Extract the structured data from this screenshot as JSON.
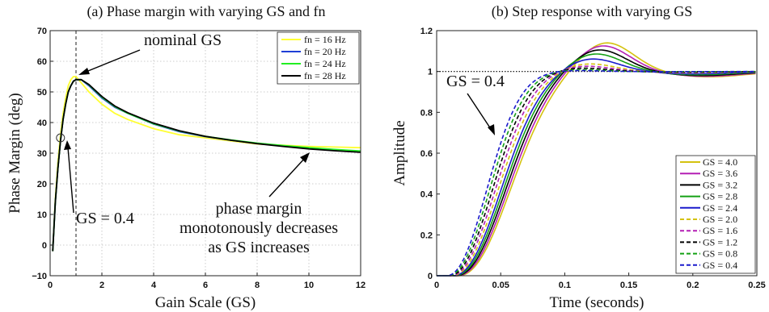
{
  "chart_data": [
    {
      "type": "line",
      "title": "(a) Phase margin with varying GS and fn",
      "xlabel": "Gain Scale (GS)",
      "ylabel": "Phase Margin (deg)",
      "xlim": [
        0,
        12
      ],
      "ylim": [
        -10,
        70
      ],
      "xticks": [
        0,
        2,
        4,
        6,
        8,
        10,
        12
      ],
      "yticks": [
        -10,
        0,
        10,
        20,
        30,
        40,
        50,
        60,
        70
      ],
      "xtick_labels": [
        "0",
        "2",
        "4",
        "6",
        "8",
        "10",
        "12"
      ],
      "ytick_labels": [
        "−10",
        "0",
        "10",
        "20",
        "30",
        "40",
        "50",
        "60",
        "70"
      ],
      "grid": true,
      "legend_position": "top-right",
      "vline_x": 1,
      "marker_point": [
        0.4,
        35
      ],
      "series": [
        {
          "name": "fn = 16 Hz",
          "color": "#ffff33",
          "x": [
            0.1,
            0.2,
            0.3,
            0.4,
            0.5,
            0.6,
            0.7,
            0.8,
            0.9,
            1.0,
            1.2,
            1.5,
            2,
            2.5,
            3,
            4,
            5,
            6,
            7,
            8,
            9,
            10,
            11,
            12
          ],
          "y": [
            -2,
            15,
            27,
            36,
            43,
            48,
            52,
            54,
            55,
            55,
            53,
            50,
            46,
            43,
            41,
            38,
            36,
            35,
            34,
            33,
            32.6,
            32.2,
            32,
            31.8
          ]
        },
        {
          "name": "fn = 20 Hz",
          "color": "#1f3fd6",
          "x": [
            0.1,
            0.2,
            0.3,
            0.4,
            0.5,
            0.6,
            0.7,
            0.8,
            0.9,
            1.0,
            1.2,
            1.5,
            2,
            2.5,
            3,
            4,
            5,
            6,
            7,
            8,
            9,
            10,
            11,
            12
          ],
          "y": [
            -2,
            14,
            25,
            34,
            41,
            46,
            50,
            52,
            53.5,
            54,
            54,
            52,
            48,
            45,
            43,
            39.5,
            37,
            35.4,
            34.2,
            33.2,
            32.4,
            31.7,
            31.1,
            30.6
          ]
        },
        {
          "name": "fn = 24 Hz",
          "color": "#22ee22",
          "x": [
            0.1,
            0.2,
            0.3,
            0.4,
            0.5,
            0.6,
            0.7,
            0.8,
            0.9,
            1.0,
            1.2,
            1.5,
            2,
            2.5,
            3,
            4,
            5,
            6,
            7,
            8,
            9,
            10,
            11,
            12
          ],
          "y": [
            -2,
            14,
            25,
            34,
            41,
            46,
            50,
            52,
            53.5,
            54,
            54,
            52.3,
            48.3,
            45.2,
            43,
            39.6,
            37.2,
            35.5,
            34.3,
            33.3,
            32.5,
            31.8,
            31.2,
            30.7
          ]
        },
        {
          "name": "fn = 28 Hz",
          "color": "#000000",
          "x": [
            0.1,
            0.2,
            0.3,
            0.4,
            0.5,
            0.6,
            0.7,
            0.8,
            0.9,
            1.0,
            1.2,
            1.5,
            2,
            2.5,
            3,
            4,
            5,
            6,
            7,
            8,
            9,
            10,
            11,
            12
          ],
          "y": [
            -2,
            14,
            25,
            34,
            41,
            46,
            50,
            52,
            53.5,
            54,
            54,
            52.4,
            48.5,
            45.4,
            43.2,
            39.8,
            37.3,
            35.5,
            34.2,
            33.1,
            32.2,
            31.4,
            30.8,
            30.3
          ]
        }
      ],
      "annotations": [
        "nominal GS",
        "GS = 0.4",
        "phase margin",
        "monotonously decreases",
        "as GS increases"
      ]
    },
    {
      "type": "line",
      "title": "(b) Step response with varying GS",
      "xlabel": "Time (seconds)",
      "ylabel": "Amplitude",
      "xlim": [
        0,
        0.25
      ],
      "ylim": [
        0,
        1.2
      ],
      "xticks": [
        0,
        0.05,
        0.1,
        0.15,
        0.2,
        0.25
      ],
      "yticks": [
        0,
        0.2,
        0.4,
        0.6,
        0.8,
        1,
        1.2
      ],
      "xtick_labels": [
        "0",
        "0.05",
        "0.1",
        "0.15",
        "0.2",
        "0.25"
      ],
      "ytick_labels": [
        "0",
        "0.2",
        "0.4",
        "0.6",
        "0.8",
        "1",
        "1.2"
      ],
      "grid": false,
      "legend_position": "bottom-right",
      "reference_line_y": 1,
      "series": [
        {
          "name": "GS = 4.0",
          "color": "#d4c20f",
          "dashed": false,
          "delay": 0.0165,
          "rise": 0.1,
          "overshoot": 0.145,
          "tpeak": 0.132
        },
        {
          "name": "GS = 3.6",
          "color": "#b41fb4",
          "dashed": false,
          "delay": 0.0155,
          "rise": 0.098,
          "overshoot": 0.13,
          "tpeak": 0.129
        },
        {
          "name": "GS = 3.2",
          "color": "#000000",
          "dashed": false,
          "delay": 0.0145,
          "rise": 0.096,
          "overshoot": 0.11,
          "tpeak": 0.126
        },
        {
          "name": "GS = 2.8",
          "color": "#14a014",
          "dashed": false,
          "delay": 0.0135,
          "rise": 0.094,
          "overshoot": 0.09,
          "tpeak": 0.123
        },
        {
          "name": "GS = 2.4",
          "color": "#1a1acc",
          "dashed": false,
          "delay": 0.0125,
          "rise": 0.092,
          "overshoot": 0.065,
          "tpeak": 0.12
        },
        {
          "name": "GS = 2.0",
          "color": "#d4c20f",
          "dashed": true,
          "delay": 0.0115,
          "rise": 0.089,
          "overshoot": 0.04,
          "tpeak": 0.117
        },
        {
          "name": "GS = 1.6",
          "color": "#b41fb4",
          "dashed": true,
          "delay": 0.0105,
          "rise": 0.086,
          "overshoot": 0.028,
          "tpeak": 0.114
        },
        {
          "name": "GS = 1.2",
          "color": "#000000",
          "dashed": true,
          "delay": 0.0095,
          "rise": 0.083,
          "overshoot": 0.018,
          "tpeak": 0.111
        },
        {
          "name": "GS = 0.8",
          "color": "#14a014",
          "dashed": true,
          "delay": 0.0085,
          "rise": 0.08,
          "overshoot": 0.01,
          "tpeak": 0.108
        },
        {
          "name": "GS = 0.4",
          "color": "#1a1acc",
          "dashed": true,
          "delay": 0.0075,
          "rise": 0.077,
          "overshoot": 0.005,
          "tpeak": 0.105
        }
      ],
      "annotations": [
        "GS = 0.4"
      ]
    }
  ]
}
